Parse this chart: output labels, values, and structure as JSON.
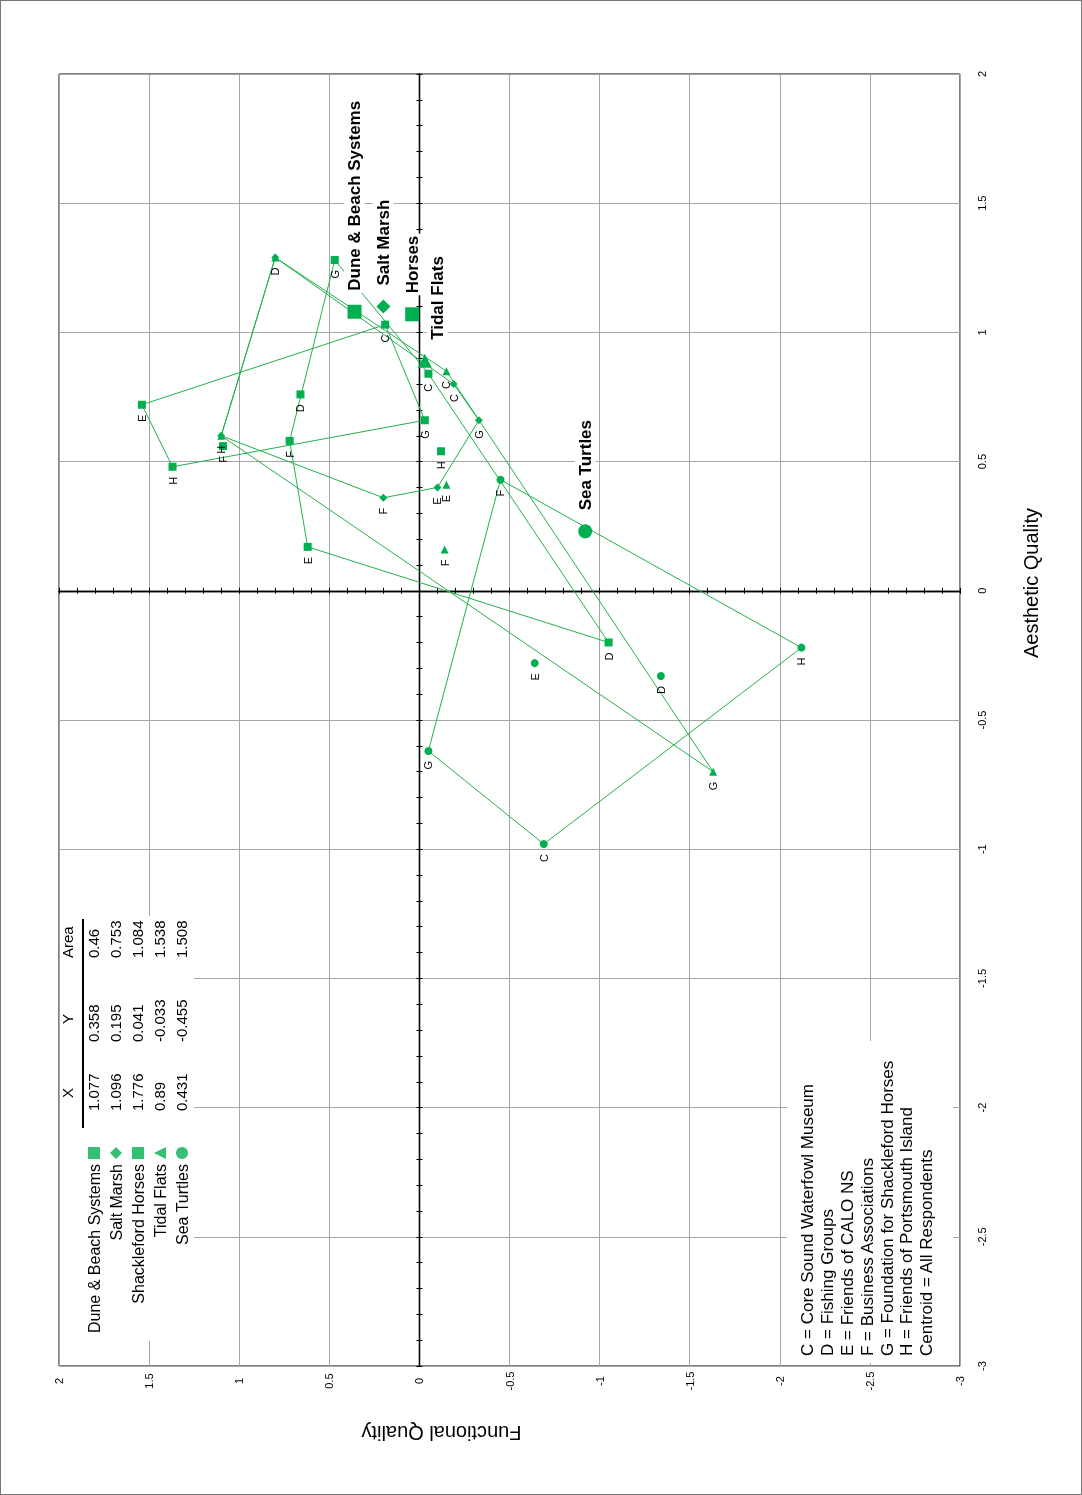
{
  "chart_data": {
    "type": "scatter",
    "xlabel": "Functional Quality",
    "ylabel": "Aesthetic Quality",
    "xlim": [
      2,
      -3
    ],
    "ylim": [
      -3,
      2
    ],
    "xticks": [
      2,
      1.5,
      1,
      0.5,
      0,
      -0.5,
      -1,
      -1.5,
      -2,
      -2.5,
      -3
    ],
    "yticks": [
      -3,
      -2.5,
      -2,
      -1.5,
      -1,
      -0.5,
      0,
      0.5,
      1,
      1.5,
      2
    ],
    "grid": true,
    "legend": "bottom left",
    "annotations": [
      "X",
      "Y",
      "Area",
      "1.077",
      "0.358",
      "0.46",
      "1.096",
      "0.195",
      "0.753",
      "1.776",
      "0.041",
      "1.084",
      "0.89",
      "-0.033",
      "1.538",
      "0.431",
      "-0.455",
      "1.508",
      "C = Core Sound Waterfowl Museum",
      "D = Fishing Groups",
      "E = Friends of CALO NS",
      "F = Business Associations",
      "G = Foundation for Shackleford Horses",
      "H = Friends of Portsmouth Island",
      "Centroid = All Respondents"
    ],
    "series": [
      {
        "name": "Dune & Beach Systems",
        "marker": "square",
        "color": "#00b050",
        "x": [
          0.19,
          0.66,
          1.54,
          1.09,
          -0.03,
          1.37
        ],
        "values": [
          1.03,
          0.76,
          0.72,
          0.56,
          0.66,
          0.48
        ],
        "value_labels": [
          "C",
          "D",
          "E",
          "F",
          "G",
          "H"
        ]
      },
      {
        "name": "Salt Marsh",
        "marker": "diamond",
        "color": "#00b050",
        "x": [
          -0.19,
          0.8,
          -0.1,
          0.2,
          -0.33,
          1.1
        ],
        "values": [
          0.8,
          1.29,
          0.4,
          0.36,
          0.66,
          0.6
        ],
        "value_labels": [
          "C",
          "D",
          "E",
          "F",
          "G",
          "H"
        ]
      },
      {
        "name": "Shackleford Horses",
        "marker": "square",
        "color": "#00b050",
        "x": [
          -0.05,
          -1.05,
          0.62,
          0.72,
          0.47,
          -0.12
        ],
        "values": [
          0.84,
          -0.2,
          0.17,
          0.58,
          1.28,
          0.54
        ],
        "value_labels": [
          "C",
          "D",
          "E",
          "F",
          "G",
          "H"
        ]
      },
      {
        "name": "Tidal Flats",
        "marker": "triangle",
        "color": "#00b050",
        "x": [
          -0.15,
          0.8,
          -0.15,
          -0.14,
          -1.63,
          1.1
        ],
        "values": [
          0.85,
          1.29,
          0.41,
          0.16,
          -0.7,
          0.6
        ],
        "value_labels": [
          "C",
          null,
          "E",
          "F",
          "G",
          null
        ]
      },
      {
        "name": "Sea Turtles",
        "marker": "circle",
        "color": "#00b050",
        "x": [
          -0.69,
          -1.34,
          -0.64,
          -0.45,
          -0.05,
          -2.12
        ],
        "values": [
          -0.98,
          -0.33,
          -0.28,
          0.43,
          -0.62,
          -0.22
        ],
        "value_labels": [
          "C",
          "D",
          "E",
          "F",
          "G",
          "H"
        ]
      },
      {
        "type": "line",
        "marker": "none",
        "color": "#22b14c",
        "x": [
          -0.03,
          1.37,
          1.54
        ],
        "values": [
          0.66,
          0.48,
          0.72
        ]
      },
      {
        "type": "line",
        "marker": "none",
        "color": "#22b14c",
        "x": [
          -0.03,
          0.19,
          1.54
        ],
        "values": [
          0.66,
          1.03,
          0.72
        ]
      },
      {
        "type": "line",
        "marker": "none",
        "color": "#22b14c",
        "x": [
          -0.33,
          -0.1,
          0.2,
          1.1
        ],
        "values": [
          0.66,
          0.4,
          0.36,
          0.6
        ]
      },
      {
        "type": "line",
        "marker": "none",
        "color": "#22b14c",
        "x": [
          -0.33,
          -0.19,
          0.8,
          1.1
        ],
        "values": [
          0.66,
          0.8,
          1.29,
          0.6
        ]
      },
      {
        "type": "line",
        "marker": "none",
        "color": "#22b14c",
        "x": [
          -1.05,
          0.62,
          0.72
        ],
        "values": [
          -0.2,
          0.17,
          0.58
        ]
      },
      {
        "type": "line",
        "marker": "none",
        "color": "#22b14c",
        "x": [
          -1.05,
          -0.05,
          0.47,
          0.72
        ],
        "values": [
          -0.2,
          0.84,
          1.28,
          0.58
        ]
      },
      {
        "type": "line",
        "marker": "none",
        "color": "#22b14c",
        "x": [
          -1.63,
          1.1
        ],
        "values": [
          -0.7,
          0.6
        ]
      },
      {
        "type": "line",
        "marker": "none",
        "color": "#22b14c",
        "x": [
          -1.63,
          -0.15,
          0.8,
          1.1
        ],
        "values": [
          -0.7,
          0.85,
          1.29,
          0.6
        ]
      },
      {
        "type": "line",
        "marker": "none",
        "color": "#22b14c",
        "x": [
          -2.12,
          -0.45,
          -0.05
        ],
        "values": [
          -0.22,
          0.43,
          -0.62
        ]
      },
      {
        "type": "line",
        "marker": "none",
        "color": "#22b14c",
        "x": [
          -2.12,
          -0.69,
          -0.05
        ],
        "values": [
          -0.22,
          -0.98,
          -0.62
        ]
      },
      {
        "marker": "square",
        "color": "#00b050",
        "x": [
          0.36
        ],
        "values": [
          1.08
        ],
        "value_labels": [
          "Dune & Beach Systems"
        ]
      },
      {
        "marker": "diamond",
        "color": "#00b050",
        "x": [
          0.2
        ],
        "values": [
          1.1
        ],
        "value_labels": [
          "Salt Marsh"
        ]
      },
      {
        "marker": "square",
        "color": "#00b050",
        "x": [
          0.04
        ],
        "values": [
          1.07
        ],
        "value_labels": [
          "Horses"
        ]
      },
      {
        "marker": "triangle",
        "color": "#00b050",
        "x": [
          -0.03
        ],
        "values": [
          0.89
        ],
        "value_labels": [
          "Tidal Flats"
        ]
      },
      {
        "marker": "circle",
        "color": "#00b050",
        "x": [
          -0.92
        ],
        "values": [
          0.23
        ],
        "value_labels": [
          "Sea Turtles"
        ]
      }
    ]
  }
}
